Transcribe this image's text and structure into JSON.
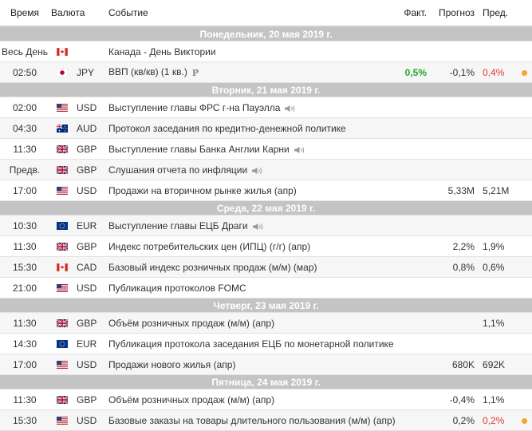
{
  "header": {
    "time": "Время",
    "currency": "Валюта",
    "event": "Событие",
    "actual": "Факт.",
    "forecast": "Прогноз",
    "previous": "Пред."
  },
  "colors": {
    "day_bar": "#c4c4c4",
    "positive": "#2aa52a",
    "negative": "#e53935",
    "revision_dot": "#f5a623"
  },
  "days": [
    {
      "label": "Понедельник, 20 мая 2019 г.",
      "events": [
        {
          "time": "Весь День",
          "flag": "ca",
          "currency": "",
          "event": "Канада - День Виктории",
          "icon": "",
          "actual": "",
          "actual_color": "",
          "forecast": "",
          "previous": "",
          "previous_color": "",
          "dot": false
        },
        {
          "time": "02:50",
          "flag": "jp",
          "currency": "JPY",
          "event": "ВВП (кв/кв) (1 кв.)",
          "icon": "preliminary-icon",
          "icon_text": "P",
          "actual": "0,5%",
          "actual_color": "green",
          "forecast": "-0,1%",
          "previous": "0,4%",
          "previous_color": "red",
          "dot": true
        }
      ]
    },
    {
      "label": "Вторник, 21 мая 2019 г.",
      "events": [
        {
          "time": "02:00",
          "flag": "us",
          "currency": "USD",
          "event": "Выступление главы ФРС г-на Пауэлла",
          "icon": "speech-icon",
          "actual": "",
          "actual_color": "",
          "forecast": "",
          "previous": "",
          "previous_color": "",
          "dot": false
        },
        {
          "time": "04:30",
          "flag": "au",
          "currency": "AUD",
          "event": "Протокол заседания по кредитно-денежной политике",
          "icon": "",
          "actual": "",
          "actual_color": "",
          "forecast": "",
          "previous": "",
          "previous_color": "",
          "dot": false
        },
        {
          "time": "11:30",
          "flag": "gb",
          "currency": "GBP",
          "event": "Выступление главы Банка Англии Карни",
          "icon": "speech-icon",
          "actual": "",
          "actual_color": "",
          "forecast": "",
          "previous": "",
          "previous_color": "",
          "dot": false
        },
        {
          "time": "Предв.",
          "flag": "gb",
          "currency": "GBP",
          "event": "Слушания отчета по инфляции",
          "icon": "speech-icon",
          "actual": "",
          "actual_color": "",
          "forecast": "",
          "previous": "",
          "previous_color": "",
          "dot": false
        },
        {
          "time": "17:00",
          "flag": "us",
          "currency": "USD",
          "event": "Продажи на вторичном рынке жилья (апр)",
          "icon": "",
          "actual": "",
          "actual_color": "",
          "forecast": "5,33M",
          "previous": "5,21M",
          "previous_color": "",
          "dot": false
        }
      ]
    },
    {
      "label": "Среда, 22 мая 2019 г.",
      "events": [
        {
          "time": "10:30",
          "flag": "eu",
          "currency": "EUR",
          "event": "Выступление главы ЕЦБ Драги",
          "icon": "speech-icon",
          "actual": "",
          "actual_color": "",
          "forecast": "",
          "previous": "",
          "previous_color": "",
          "dot": false
        },
        {
          "time": "11:30",
          "flag": "gb",
          "currency": "GBP",
          "event": "Индекс потребительских цен (ИПЦ) (г/г) (апр)",
          "icon": "",
          "actual": "",
          "actual_color": "",
          "forecast": "2,2%",
          "previous": "1,9%",
          "previous_color": "",
          "dot": false
        },
        {
          "time": "15:30",
          "flag": "ca",
          "currency": "CAD",
          "event": "Базовый индекс розничных продаж (м/м) (мар)",
          "icon": "",
          "actual": "",
          "actual_color": "",
          "forecast": "0,8%",
          "previous": "0,6%",
          "previous_color": "",
          "dot": false
        },
        {
          "time": "21:00",
          "flag": "us",
          "currency": "USD",
          "event": "Публикация протоколов FOMC",
          "icon": "",
          "actual": "",
          "actual_color": "",
          "forecast": "",
          "previous": "",
          "previous_color": "",
          "dot": false
        }
      ]
    },
    {
      "label": "Четверг, 23 мая 2019 г.",
      "events": [
        {
          "time": "11:30",
          "flag": "gb",
          "currency": "GBP",
          "event": "Объём розничных продаж (м/м) (апр)",
          "icon": "",
          "actual": "",
          "actual_color": "",
          "forecast": "",
          "previous": "1,1%",
          "previous_color": "",
          "dot": false
        },
        {
          "time": "14:30",
          "flag": "eu",
          "currency": "EUR",
          "event": "Публикация протокола заседания ЕЦБ по монетарной политике",
          "icon": "",
          "actual": "",
          "actual_color": "",
          "forecast": "",
          "previous": "",
          "previous_color": "",
          "dot": false
        },
        {
          "time": "17:00",
          "flag": "us",
          "currency": "USD",
          "event": "Продажи нового жилья (апр)",
          "icon": "",
          "actual": "",
          "actual_color": "",
          "forecast": "680K",
          "previous": "692K",
          "previous_color": "",
          "dot": false
        }
      ]
    },
    {
      "label": "Пятница, 24 мая 2019 г.",
      "events": [
        {
          "time": "11:30",
          "flag": "gb",
          "currency": "GBP",
          "event": "Объём розничных продаж (м/м) (апр)",
          "icon": "",
          "actual": "",
          "actual_color": "",
          "forecast": "-0,4%",
          "previous": "1,1%",
          "previous_color": "",
          "dot": false
        },
        {
          "time": "15:30",
          "flag": "us",
          "currency": "USD",
          "event": "Базовые заказы на товары длительного пользования (м/м) (апр)",
          "icon": "",
          "actual": "",
          "actual_color": "",
          "forecast": "0,2%",
          "previous": "0,2%",
          "previous_color": "red",
          "dot": true
        }
      ]
    }
  ]
}
